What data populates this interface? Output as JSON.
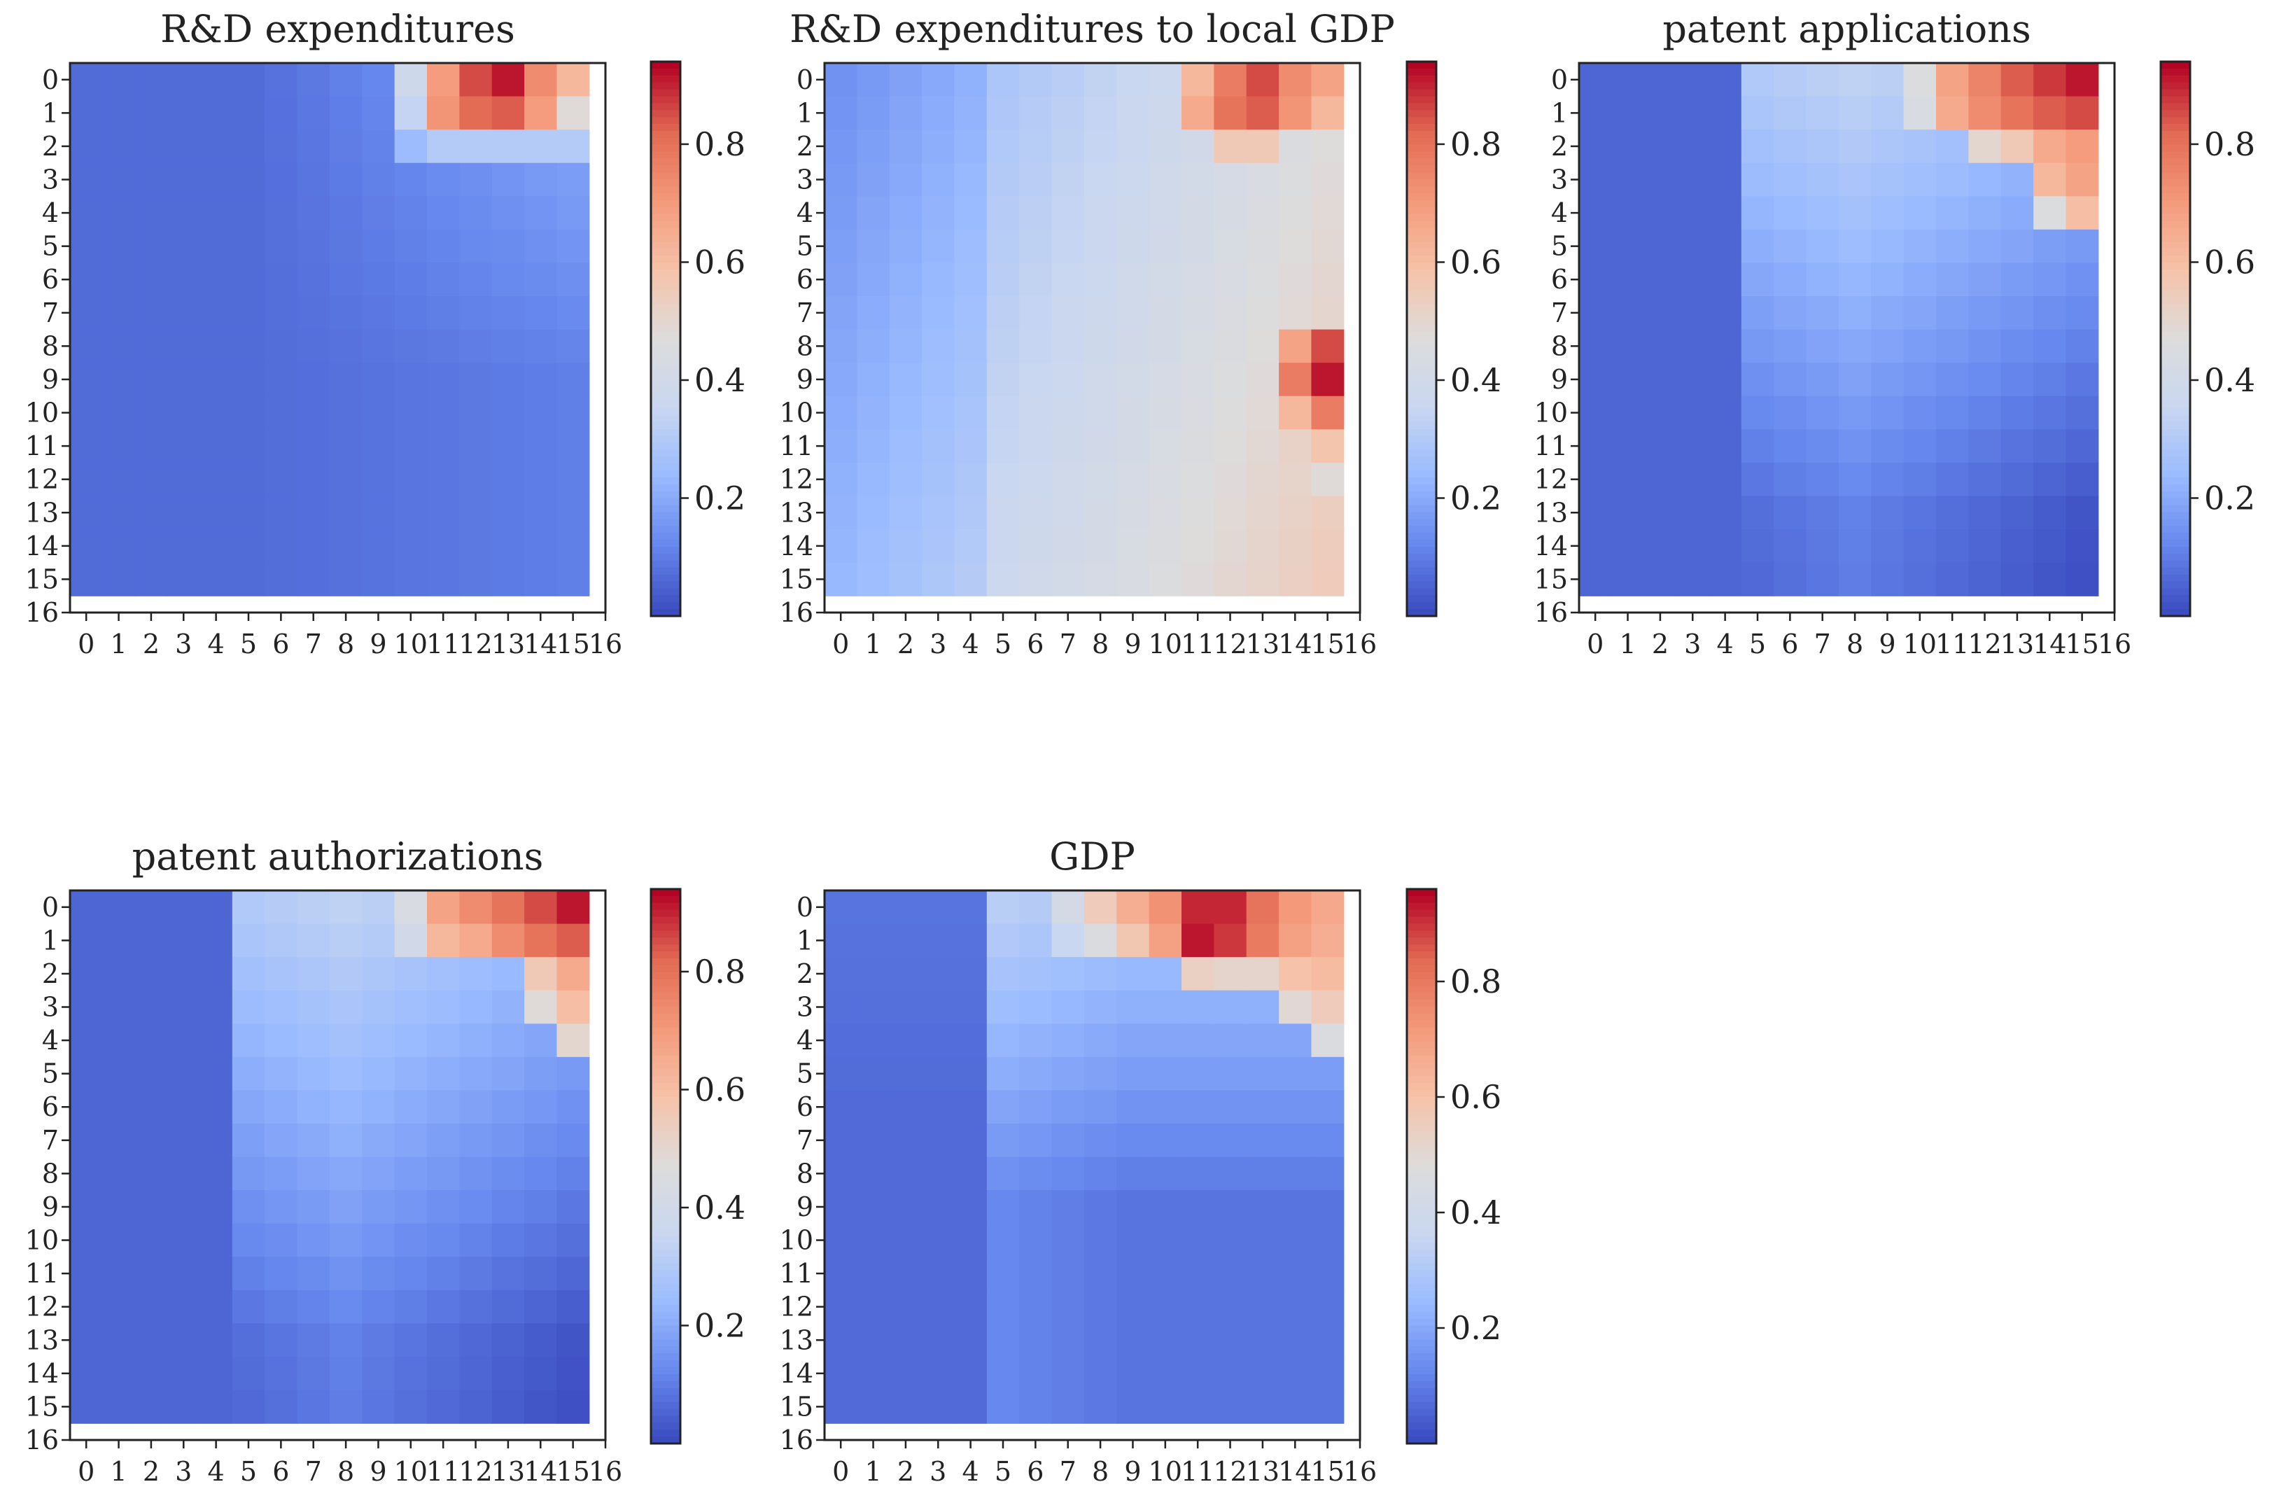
{
  "figure": {
    "cmap": "coolwarm",
    "cmap_stops": [
      "#3b4cc0",
      "#6788ee",
      "#9abbff",
      "#c9d7f0",
      "#dddcdc",
      "#f6c3aa",
      "#f49a7b",
      "#e36b54",
      "#b40426"
    ]
  },
  "chart_data": [
    {
      "type": "heatmap",
      "title": "R&D expenditures",
      "xticks": [
        "0",
        "1",
        "2",
        "3",
        "4",
        "5",
        "6",
        "7",
        "8",
        "9",
        "10",
        "11",
        "12",
        "13",
        "14",
        "15",
        "16"
      ],
      "yticks": [
        "0",
        "1",
        "2",
        "3",
        "4",
        "5",
        "6",
        "7",
        "8",
        "9",
        "10",
        "11",
        "12",
        "13",
        "14",
        "15",
        "16"
      ],
      "colorbar_ticks": [
        0.2,
        0.4,
        0.6,
        0.8
      ],
      "colorbar_range": [
        0.0,
        0.94
      ],
      "grid_size": 16,
      "cells": {
        "base": "lowpeak",
        "overrides": [
          [
            0,
            10,
            0.38
          ],
          [
            0,
            11,
            0.7
          ],
          [
            0,
            12,
            0.86
          ],
          [
            0,
            13,
            0.92
          ],
          [
            0,
            14,
            0.74
          ],
          [
            0,
            15,
            0.62
          ],
          [
            1,
            10,
            0.34
          ],
          [
            1,
            11,
            0.72
          ],
          [
            1,
            12,
            0.82
          ],
          [
            1,
            13,
            0.84
          ],
          [
            1,
            14,
            0.7
          ],
          [
            1,
            15,
            0.48
          ],
          [
            2,
            10,
            0.24
          ],
          [
            2,
            11,
            0.3
          ],
          [
            2,
            12,
            0.3
          ],
          [
            2,
            13,
            0.3
          ],
          [
            2,
            14,
            0.3
          ],
          [
            2,
            15,
            0.3
          ]
        ]
      }
    },
    {
      "type": "heatmap",
      "title": "R&D expenditures to local GDP",
      "xticks": [
        "0",
        "1",
        "2",
        "3",
        "4",
        "5",
        "6",
        "7",
        "8",
        "9",
        "10",
        "11",
        "12",
        "13",
        "14",
        "15",
        "16"
      ],
      "yticks": [
        "0",
        "1",
        "2",
        "3",
        "4",
        "5",
        "6",
        "7",
        "8",
        "9",
        "10",
        "11",
        "12",
        "13",
        "14",
        "15",
        "16"
      ],
      "colorbar_ticks": [
        0.2,
        0.4,
        0.6,
        0.8
      ],
      "colorbar_range": [
        0.0,
        0.94
      ],
      "grid_size": 16,
      "cells": {
        "base": "ratio",
        "overrides": [
          [
            0,
            11,
            0.62
          ],
          [
            0,
            12,
            0.78
          ],
          [
            0,
            13,
            0.86
          ],
          [
            0,
            14,
            0.74
          ],
          [
            0,
            15,
            0.68
          ],
          [
            1,
            11,
            0.66
          ],
          [
            1,
            12,
            0.8
          ],
          [
            1,
            13,
            0.84
          ],
          [
            1,
            14,
            0.72
          ],
          [
            1,
            15,
            0.62
          ],
          [
            2,
            12,
            0.56
          ],
          [
            2,
            13,
            0.56
          ],
          [
            8,
            14,
            0.68
          ],
          [
            8,
            15,
            0.86
          ],
          [
            9,
            14,
            0.78
          ],
          [
            9,
            15,
            0.92
          ],
          [
            10,
            14,
            0.62
          ],
          [
            10,
            15,
            0.78
          ],
          [
            11,
            14,
            0.52
          ],
          [
            11,
            15,
            0.58
          ],
          [
            12,
            15,
            0.48
          ]
        ]
      }
    },
    {
      "type": "heatmap",
      "title": "patent applications",
      "xticks": [
        "0",
        "1",
        "2",
        "3",
        "4",
        "5",
        "6",
        "7",
        "8",
        "9",
        "10",
        "11",
        "12",
        "13",
        "14",
        "15",
        "16"
      ],
      "yticks": [
        "0",
        "1",
        "2",
        "3",
        "4",
        "5",
        "6",
        "7",
        "8",
        "9",
        "10",
        "11",
        "12",
        "13",
        "14",
        "15",
        "16"
      ],
      "colorbar_ticks": [
        0.2,
        0.4,
        0.6,
        0.8
      ],
      "colorbar_range": [
        0.0,
        0.94
      ],
      "grid_size": 16,
      "cells": {
        "base": "patent",
        "overrides": [
          [
            0,
            10,
            0.46
          ],
          [
            0,
            11,
            0.68
          ],
          [
            0,
            12,
            0.76
          ],
          [
            0,
            13,
            0.84
          ],
          [
            0,
            14,
            0.88
          ],
          [
            0,
            15,
            0.92
          ],
          [
            1,
            10,
            0.44
          ],
          [
            1,
            11,
            0.66
          ],
          [
            1,
            12,
            0.74
          ],
          [
            1,
            13,
            0.8
          ],
          [
            1,
            14,
            0.84
          ],
          [
            1,
            15,
            0.86
          ],
          [
            2,
            12,
            0.5
          ],
          [
            2,
            13,
            0.56
          ],
          [
            2,
            14,
            0.66
          ],
          [
            2,
            15,
            0.7
          ],
          [
            3,
            14,
            0.62
          ],
          [
            3,
            15,
            0.68
          ],
          [
            4,
            14,
            0.46
          ],
          [
            4,
            15,
            0.6
          ]
        ]
      }
    },
    {
      "type": "heatmap",
      "title": "patent authorizations",
      "xticks": [
        "0",
        "1",
        "2",
        "3",
        "4",
        "5",
        "6",
        "7",
        "8",
        "9",
        "10",
        "11",
        "12",
        "13",
        "14",
        "15",
        "16"
      ],
      "yticks": [
        "0",
        "1",
        "2",
        "3",
        "4",
        "5",
        "6",
        "7",
        "8",
        "9",
        "10",
        "11",
        "12",
        "13",
        "14",
        "15",
        "16"
      ],
      "colorbar_ticks": [
        0.2,
        0.4,
        0.6,
        0.8
      ],
      "colorbar_range": [
        0.0,
        0.94
      ],
      "grid_size": 16,
      "cells": {
        "base": "patent",
        "overrides": [
          [
            0,
            10,
            0.44
          ],
          [
            0,
            11,
            0.68
          ],
          [
            0,
            12,
            0.74
          ],
          [
            0,
            13,
            0.8
          ],
          [
            0,
            14,
            0.86
          ],
          [
            0,
            15,
            0.92
          ],
          [
            1,
            10,
            0.4
          ],
          [
            1,
            11,
            0.62
          ],
          [
            1,
            12,
            0.66
          ],
          [
            1,
            13,
            0.74
          ],
          [
            1,
            14,
            0.8
          ],
          [
            1,
            15,
            0.84
          ],
          [
            2,
            14,
            0.56
          ],
          [
            2,
            15,
            0.66
          ],
          [
            3,
            14,
            0.48
          ],
          [
            3,
            15,
            0.6
          ],
          [
            4,
            15,
            0.5
          ]
        ]
      }
    },
    {
      "type": "heatmap",
      "title": "GDP",
      "xticks": [
        "0",
        "1",
        "2",
        "3",
        "4",
        "5",
        "6",
        "7",
        "8",
        "9",
        "10",
        "11",
        "12",
        "13",
        "14",
        "15",
        "16"
      ],
      "yticks": [
        "0",
        "1",
        "2",
        "3",
        "4",
        "5",
        "6",
        "7",
        "8",
        "9",
        "10",
        "11",
        "12",
        "13",
        "14",
        "15",
        "16"
      ],
      "colorbar_ticks": [
        0.2,
        0.4,
        0.6,
        0.8
      ],
      "colorbar_range": [
        0.0,
        0.96
      ],
      "grid_size": 16,
      "cells": {
        "base": "gdp",
        "overrides": [
          [
            0,
            7,
            0.42
          ],
          [
            0,
            8,
            0.56
          ],
          [
            0,
            9,
            0.66
          ],
          [
            0,
            10,
            0.74
          ],
          [
            0,
            11,
            0.92
          ],
          [
            0,
            12,
            0.92
          ],
          [
            0,
            13,
            0.82
          ],
          [
            0,
            14,
            0.72
          ],
          [
            0,
            15,
            0.68
          ],
          [
            1,
            7,
            0.36
          ],
          [
            1,
            8,
            0.46
          ],
          [
            1,
            9,
            0.58
          ],
          [
            1,
            10,
            0.7
          ],
          [
            1,
            11,
            0.94
          ],
          [
            1,
            12,
            0.9
          ],
          [
            1,
            13,
            0.8
          ],
          [
            1,
            14,
            0.7
          ],
          [
            1,
            15,
            0.66
          ],
          [
            2,
            11,
            0.54
          ],
          [
            2,
            12,
            0.52
          ],
          [
            2,
            13,
            0.52
          ],
          [
            2,
            14,
            0.6
          ],
          [
            2,
            15,
            0.62
          ],
          [
            3,
            14,
            0.5
          ],
          [
            3,
            15,
            0.56
          ],
          [
            4,
            15,
            0.46
          ]
        ]
      }
    }
  ]
}
